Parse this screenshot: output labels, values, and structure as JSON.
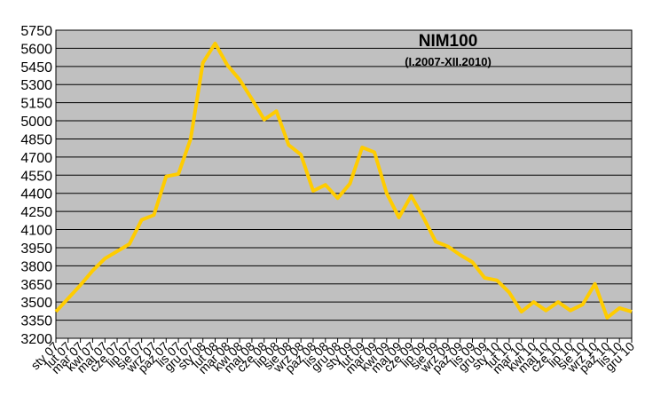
{
  "chart_data": {
    "type": "line",
    "title": "NIM100",
    "subtitle": "(I.2007-XII.2010)",
    "categories": [
      "sty 07",
      "lut 07",
      "mar 07",
      "kwi 07",
      "maj 07",
      "cze 07",
      "lip 07",
      "sie 07",
      "wrz 07",
      "paź 07",
      "lis 07",
      "gru 07",
      "sty 08",
      "lut 08",
      "mar 08",
      "kwi 08",
      "maj 08",
      "cze 08",
      "lip 08",
      "sie 08",
      "wrz 08",
      "paź 08",
      "lis 08",
      "gru 08",
      "sty 09",
      "lut 09",
      "mar 09",
      "kwi 09",
      "maj 09",
      "cze 09",
      "lip 09",
      "sie 09",
      "wrz 09",
      "paź 09",
      "lis 09",
      "gru 09",
      "sty 10",
      "lut 10",
      "mar 10",
      "kwi 10",
      "maj 10",
      "cze 10",
      "lip 10",
      "sie 10",
      "wrz 10",
      "paź 10",
      "lis 10",
      "gru 10"
    ],
    "series": [
      {
        "name": "NIM100",
        "color": "#ffcc00",
        "values": [
          3420,
          3530,
          3640,
          3760,
          3860,
          3920,
          3980,
          4180,
          4220,
          4540,
          4560,
          4850,
          5480,
          5640,
          5460,
          5340,
          5180,
          5010,
          5080,
          4800,
          4720,
          4420,
          4470,
          4360,
          4480,
          4780,
          4740,
          4400,
          4200,
          4380,
          4200,
          4000,
          3960,
          3890,
          3830,
          3700,
          3680,
          3580,
          3420,
          3500,
          3430,
          3500,
          3430,
          3480,
          3650,
          3370,
          3450,
          3420
        ]
      }
    ],
    "ylim": [
      3200,
      5750
    ],
    "yticks": [
      3200,
      3350,
      3500,
      3650,
      3800,
      3950,
      4100,
      4250,
      4400,
      4550,
      4700,
      4850,
      5000,
      5150,
      5300,
      5450,
      5600,
      5750
    ],
    "grid": true
  }
}
